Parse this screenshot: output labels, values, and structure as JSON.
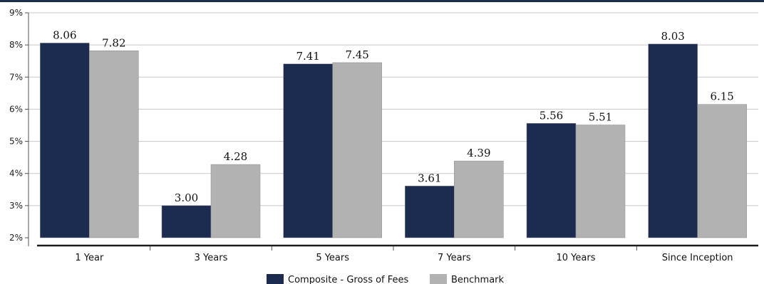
{
  "chart_data": {
    "type": "bar",
    "title": "",
    "xlabel": "",
    "ylabel": "",
    "categories": [
      "1 Year",
      "3 Years",
      "5 Years",
      "7 Years",
      "10 Years",
      "Since Inception"
    ],
    "series": [
      {
        "name": "Composite - Gross of Fees",
        "color": "#1c2b50",
        "values": [
          8.06,
          3.0,
          7.41,
          3.61,
          5.56,
          8.03
        ],
        "labels": [
          "8.06",
          "3.00",
          "7.41",
          "3.61",
          "5.56",
          "8.03"
        ]
      },
      {
        "name": "Benchmark",
        "color": "#b2b2b2",
        "values": [
          7.82,
          4.28,
          7.45,
          4.39,
          5.51,
          6.15
        ],
        "labels": [
          "7.82",
          "4.28",
          "7.45",
          "4.39",
          "5.51",
          "6.15"
        ]
      }
    ],
    "ylim": [
      2,
      9
    ],
    "yticks": [
      {
        "value": 2,
        "label": "2%"
      },
      {
        "value": 3,
        "label": "3%"
      },
      {
        "value": 4,
        "label": "4%"
      },
      {
        "value": 5,
        "label": "5%"
      },
      {
        "value": 6,
        "label": "6%"
      },
      {
        "value": 7,
        "label": "7%"
      },
      {
        "value": 8,
        "label": "8%"
      },
      {
        "value": 9,
        "label": "9%"
      }
    ],
    "grid": true,
    "legend_position": "bottom-center",
    "accent_color": "#1c2c4c"
  }
}
